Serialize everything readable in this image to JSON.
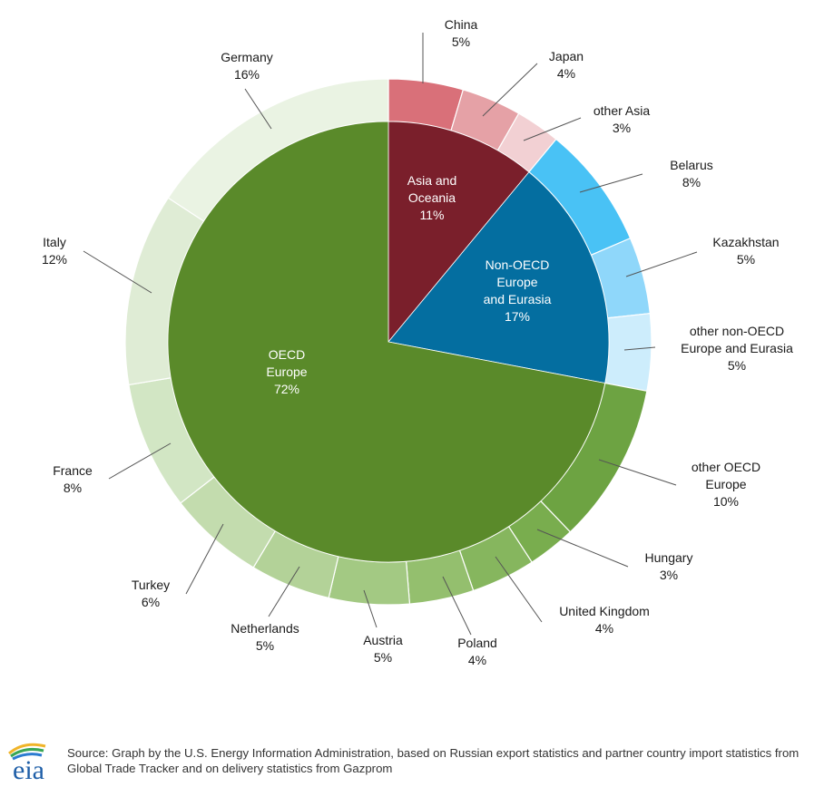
{
  "chart_data": {
    "type": "pie",
    "inner": [
      {
        "label": "OECD",
        "label2": "Europe",
        "value_label": "72%",
        "value": 72,
        "color": "#5a8a2a"
      },
      {
        "label": "Non-OECD",
        "label2": "Europe",
        "label3": "and Eurasia",
        "value_label": "17%",
        "value": 17,
        "color": "#046ea0"
      },
      {
        "label": "Asia and",
        "label2": "Oceania",
        "value_label": "11%",
        "value": 11,
        "color": "#7a1f2b"
      }
    ],
    "outer": [
      {
        "label": "China",
        "value_label": "5%",
        "value": 5,
        "color": "#d97079"
      },
      {
        "label": "Japan",
        "value_label": "4%",
        "value": 4,
        "color": "#e5a1a6"
      },
      {
        "label": "other Asia",
        "value_label": "3%",
        "value": 3,
        "color": "#f2d0d3"
      },
      {
        "label": "Belarus",
        "value_label": "8%",
        "value": 8,
        "color": "#49c2f5"
      },
      {
        "label": "Kazakhstan",
        "value_label": "5%",
        "value": 5,
        "color": "#8fd7fa"
      },
      {
        "label": "other non-OECD",
        "label2": "Europe and Eurasia",
        "value_label": "5%",
        "value": 5,
        "color": "#cdedfc"
      },
      {
        "label": "other OECD",
        "label2": "Europe",
        "value_label": "10%",
        "value": 10,
        "color": "#6da342"
      },
      {
        "label": "Hungary",
        "value_label": "3%",
        "value": 3,
        "color": "#79ad4e"
      },
      {
        "label": "United Kingdom",
        "value_label": "4%",
        "value": 4,
        "color": "#86b65e"
      },
      {
        "label": "Poland",
        "value_label": "4%",
        "value": 4,
        "color": "#94bf6e"
      },
      {
        "label": "Austria",
        "value_label": "5%",
        "value": 5,
        "color": "#a3c983"
      },
      {
        "label": "Netherlands",
        "value_label": "5%",
        "value": 5,
        "color": "#b3d298"
      },
      {
        "label": "Turkey",
        "value_label": "6%",
        "value": 6,
        "color": "#c3dcae"
      },
      {
        "label": "France",
        "value_label": "8%",
        "value": 8,
        "color": "#d2e6c4"
      },
      {
        "label": "Italy",
        "value_label": "12%",
        "value": 12,
        "color": "#dfecd5"
      },
      {
        "label": "Germany",
        "value_label": "16%",
        "value": 16,
        "color": "#eaf3e3"
      }
    ]
  },
  "footer": {
    "logo_text": "eia",
    "source": "Source: Graph by the U.S. Energy Information Administration, based on Russian export statistics and partner country import statistics from Global Trade Tracker and on delivery statistics from Gazprom"
  }
}
